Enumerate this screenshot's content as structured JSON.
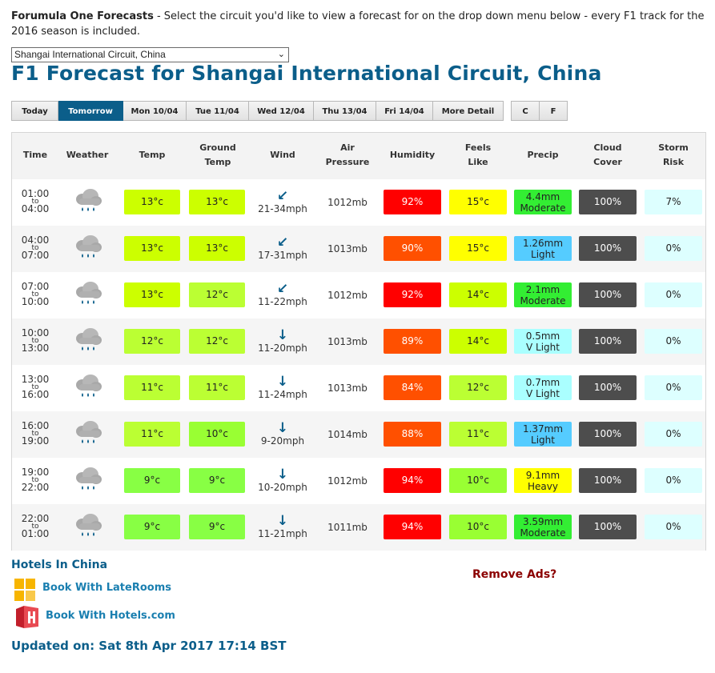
{
  "intro": {
    "title": "Forumula One Forecasts",
    "text": " - Select the circuit you'd like to view a forecast for on the drop down menu below - every F1 track for the 2016 season is included."
  },
  "select": {
    "value": "Shangai International Circuit, China"
  },
  "heading": "F1 Forecast for Shangai International Circuit, China",
  "tabs": [
    "Today",
    "Tomorrow",
    "Mon 10/04",
    "Tue 11/04",
    "Wed 12/04",
    "Thu 13/04",
    "Fri 14/04",
    "More Detail"
  ],
  "active_tab": "Tomorrow",
  "units": [
    "C",
    "F"
  ],
  "headers": {
    "time": "Time",
    "weather": "Weather",
    "temp": "Temp",
    "ground1": "Ground",
    "ground2": "Temp",
    "wind": "Wind",
    "air1": "Air",
    "air2": "Pressure",
    "humidity": "Humidity",
    "feels1": "Feels",
    "feels2": "Like",
    "precip": "Precip",
    "cloud1": "Cloud",
    "cloud2": "Cover",
    "storm1": "Storm",
    "storm2": "Risk"
  },
  "rows": [
    {
      "from": "01:00",
      "to_label": "to",
      "to": "04:00",
      "temp": "13°c",
      "temp_color": "#ccff00",
      "ground": "13°c",
      "ground_color": "#ccff00",
      "wind_arrow": "↙",
      "wind": "21-34mph",
      "pressure": "1012mb",
      "humidity": "92%",
      "hum_color": "#ff0000",
      "feels": "15°c",
      "feels_color": "#ffff00",
      "precip_amt": "4.4mm",
      "precip_desc": "Moderate",
      "precip_color": "#33ee33",
      "cloud": "100%",
      "storm": "7%"
    },
    {
      "from": "04:00",
      "to_label": "to",
      "to": "07:00",
      "temp": "13°c",
      "temp_color": "#ccff00",
      "ground": "13°c",
      "ground_color": "#ccff00",
      "wind_arrow": "↙",
      "wind": "17-31mph",
      "pressure": "1013mb",
      "humidity": "90%",
      "hum_color": "#ff5000",
      "feels": "15°c",
      "feels_color": "#ffff00",
      "precip_amt": "1.26mm",
      "precip_desc": "Light",
      "precip_color": "#55ccff",
      "cloud": "100%",
      "storm": "0%"
    },
    {
      "from": "07:00",
      "to_label": "to",
      "to": "10:00",
      "temp": "13°c",
      "temp_color": "#ccff00",
      "ground": "12°c",
      "ground_color": "#bbff33",
      "wind_arrow": "↙",
      "wind": "11-22mph",
      "pressure": "1012mb",
      "humidity": "92%",
      "hum_color": "#ff0000",
      "feels": "14°c",
      "feels_color": "#ccff00",
      "precip_amt": "2.1mm",
      "precip_desc": "Moderate",
      "precip_color": "#33ee33",
      "cloud": "100%",
      "storm": "0%"
    },
    {
      "from": "10:00",
      "to_label": "to",
      "to": "13:00",
      "temp": "12°c",
      "temp_color": "#bbff33",
      "ground": "12°c",
      "ground_color": "#bbff33",
      "wind_arrow": "↓",
      "wind": "11-20mph",
      "pressure": "1013mb",
      "humidity": "89%",
      "hum_color": "#ff5000",
      "feels": "14°c",
      "feels_color": "#ccff00",
      "precip_amt": "0.5mm",
      "precip_desc": "V Light",
      "precip_color": "#aaffff",
      "cloud": "100%",
      "storm": "0%"
    },
    {
      "from": "13:00",
      "to_label": "to",
      "to": "16:00",
      "temp": "11°c",
      "temp_color": "#bbff33",
      "ground": "11°c",
      "ground_color": "#bbff33",
      "wind_arrow": "↓",
      "wind": "11-24mph",
      "pressure": "1013mb",
      "humidity": "84%",
      "hum_color": "#ff5000",
      "feels": "12°c",
      "feels_color": "#bbff33",
      "precip_amt": "0.7mm",
      "precip_desc": "V Light",
      "precip_color": "#aaffff",
      "cloud": "100%",
      "storm": "0%"
    },
    {
      "from": "16:00",
      "to_label": "to",
      "to": "19:00",
      "temp": "11°c",
      "temp_color": "#bbff33",
      "ground": "10°c",
      "ground_color": "#99ff33",
      "wind_arrow": "↓",
      "wind": "9-20mph",
      "pressure": "1014mb",
      "humidity": "88%",
      "hum_color": "#ff5000",
      "feels": "11°c",
      "feels_color": "#bbff33",
      "precip_amt": "1.37mm",
      "precip_desc": "Light",
      "precip_color": "#55ccff",
      "cloud": "100%",
      "storm": "0%"
    },
    {
      "from": "19:00",
      "to_label": "to",
      "to": "22:00",
      "temp": "9°c",
      "temp_color": "#88ff44",
      "ground": "9°c",
      "ground_color": "#88ff44",
      "wind_arrow": "↓",
      "wind": "10-20mph",
      "pressure": "1012mb",
      "humidity": "94%",
      "hum_color": "#ff0000",
      "feels": "10°c",
      "feels_color": "#99ff33",
      "precip_amt": "9.1mm",
      "precip_desc": "Heavy",
      "precip_color": "#ffff00",
      "cloud": "100%",
      "storm": "0%"
    },
    {
      "from": "22:00",
      "to_label": "to",
      "to": "01:00",
      "temp": "9°c",
      "temp_color": "#88ff44",
      "ground": "9°c",
      "ground_color": "#88ff44",
      "wind_arrow": "↓",
      "wind": "11-21mph",
      "pressure": "1011mb",
      "humidity": "94%",
      "hum_color": "#ff0000",
      "feels": "10°c",
      "feels_color": "#99ff33",
      "precip_amt": "3.59mm",
      "precip_desc": "Moderate",
      "precip_color": "#33ee33",
      "cloud": "100%",
      "storm": "0%"
    }
  ],
  "cloud_color": "#4d4d4d",
  "storm_color": "#ddffff",
  "hotels": {
    "title": "Hotels In China",
    "laterooms": "Book With LateRooms",
    "hotelscom": "Book With Hotels.com"
  },
  "remove_ads": "Remove Ads?",
  "updated": "Updated on: Sat 8th Apr 2017 17:14 BST"
}
